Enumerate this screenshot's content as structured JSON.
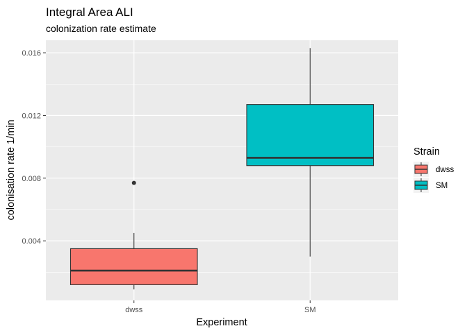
{
  "chart_data": {
    "type": "boxplot",
    "title": "Integral Area ALI",
    "subtitle": "colonization rate estimate",
    "xlabel": "Experiment",
    "ylabel": "colonisation rate 1/min",
    "categories": [
      "dwss",
      "SM"
    ],
    "ylim": [
      0.0002,
      0.0168
    ],
    "yticks": [
      0.004,
      0.008,
      0.012,
      0.016
    ],
    "ytick_labels": [
      "0.004",
      "0.008",
      "0.012",
      "0.016"
    ],
    "legend": {
      "title": "Strain",
      "position": "right",
      "entries": [
        "dwss",
        "SM"
      ]
    },
    "grid": true,
    "series": [
      {
        "category": "dwss",
        "color": "#F8766D",
        "whisker_low": 0.0009,
        "q1": 0.0012,
        "median": 0.0021,
        "q3": 0.0035,
        "whisker_high": 0.0045,
        "outliers": [
          0.0077
        ]
      },
      {
        "category": "SM",
        "color": "#00BFC4",
        "whisker_low": 0.003,
        "q1": 0.0088,
        "median": 0.0093,
        "q3": 0.0127,
        "whisker_high": 0.0163,
        "outliers": []
      }
    ]
  }
}
